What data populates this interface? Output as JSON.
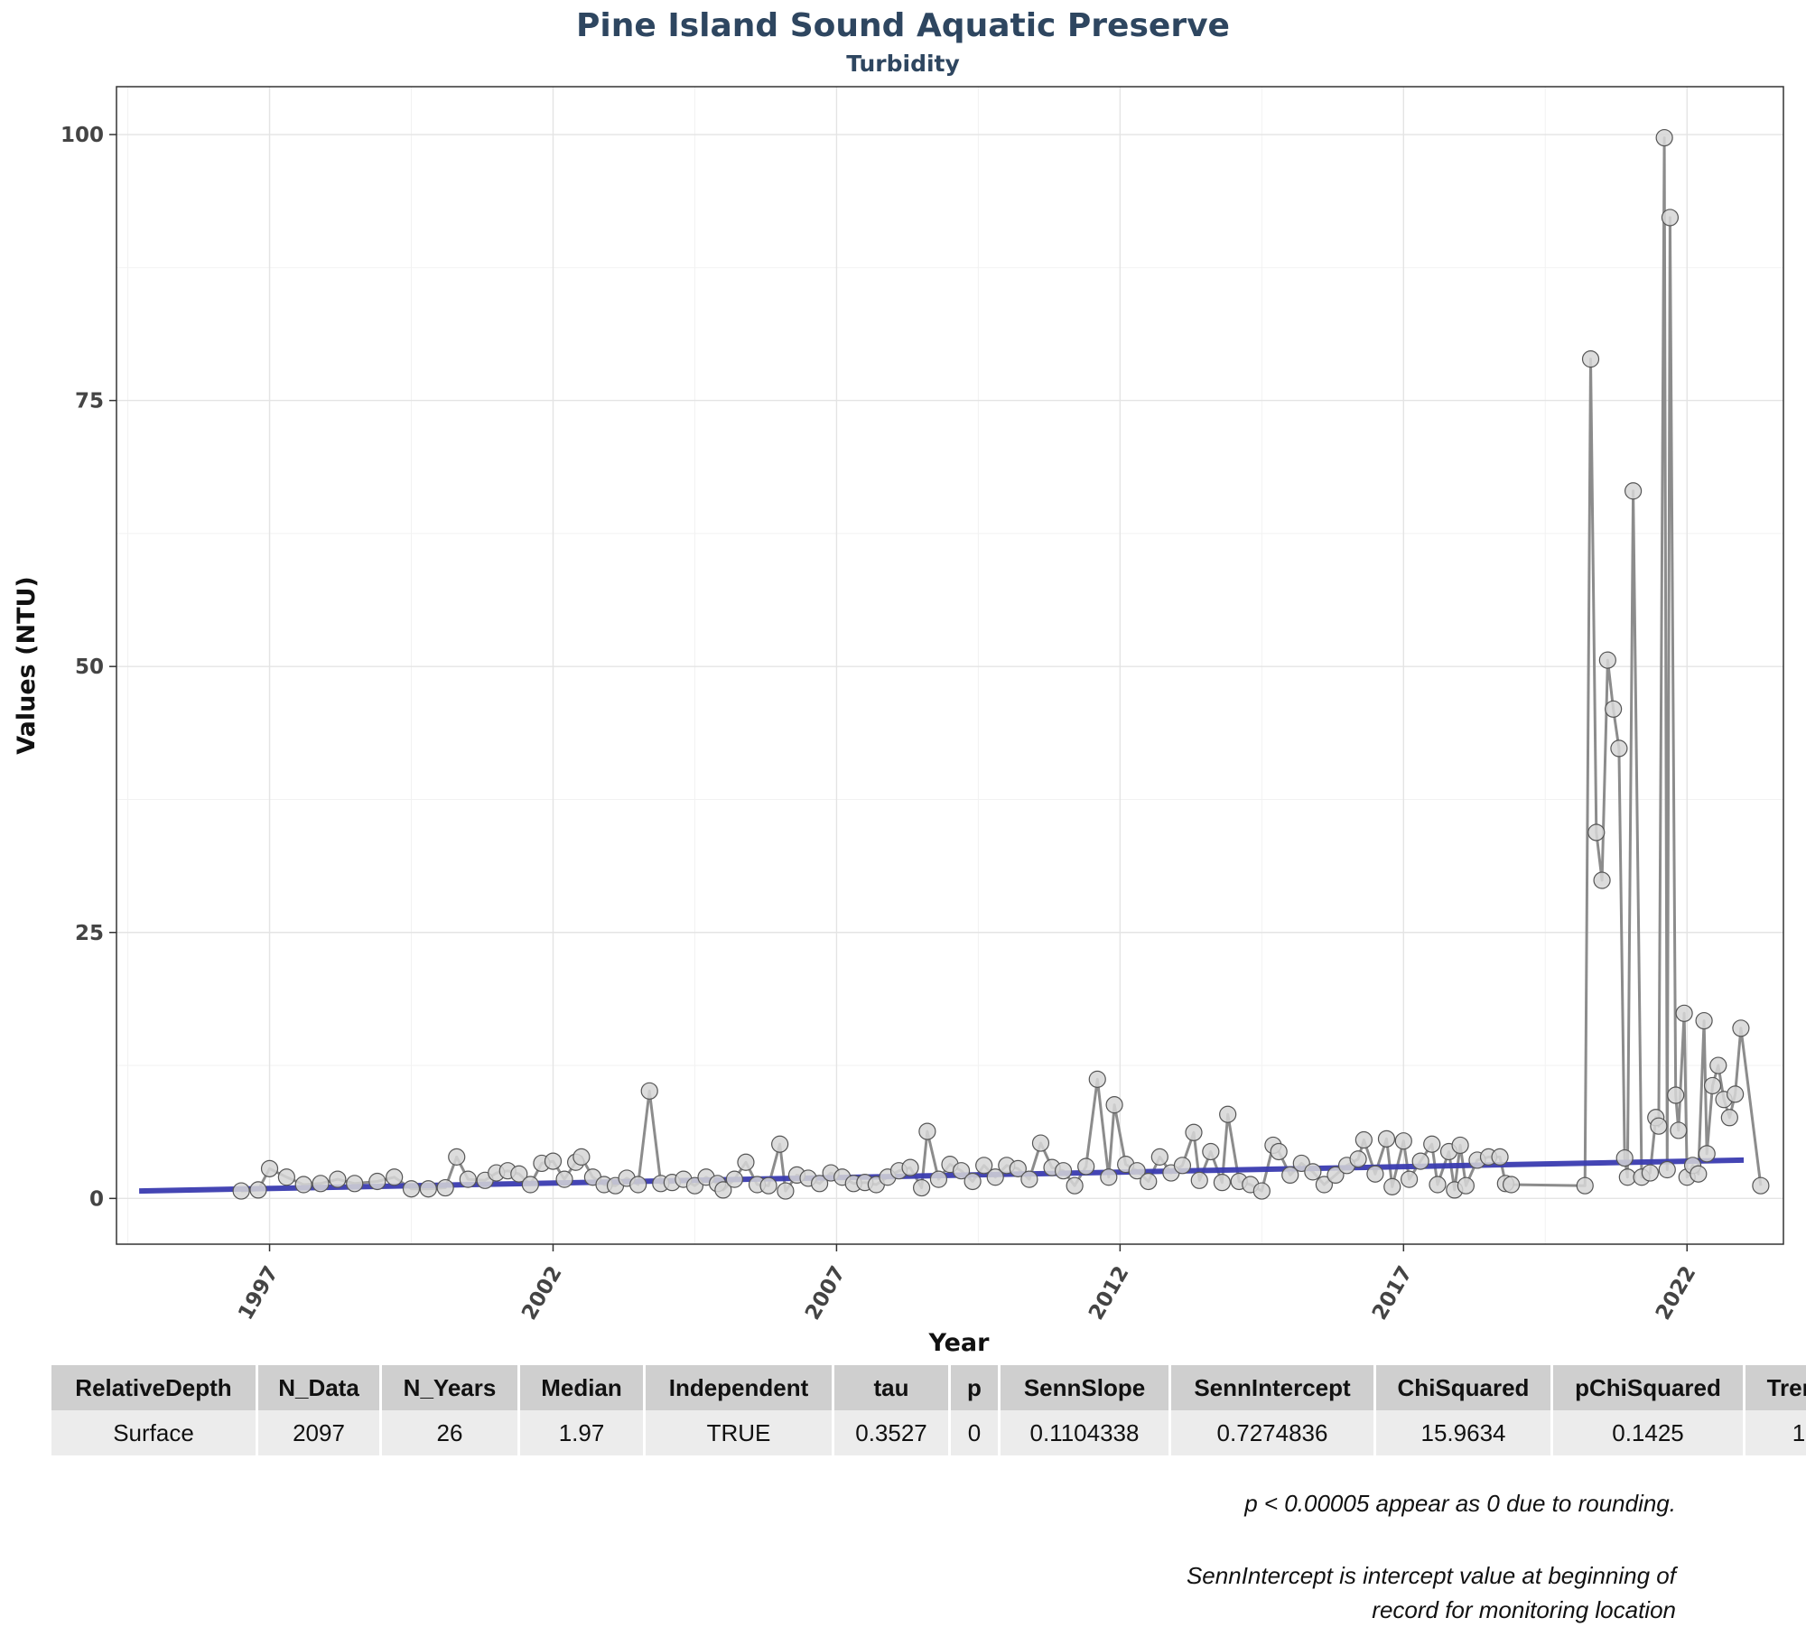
{
  "chart_data": {
    "type": "line",
    "title": "Pine Island Sound Aquatic Preserve",
    "subtitle": "Turbidity",
    "xlabel": "Year",
    "ylabel": "Values (NTU)",
    "xlim": [
      1994.3,
      2023.7
    ],
    "ylim": [
      -4.3,
      104.5
    ],
    "x_ticks": [
      1997,
      2002,
      2007,
      2012,
      2017,
      2022
    ],
    "x_tick_labels": [
      "1997",
      "2002",
      "2007",
      "2012",
      "2017",
      "2022"
    ],
    "y_ticks": [
      0,
      25,
      50,
      75,
      100
    ],
    "y_tick_labels": [
      "0",
      "25",
      "50",
      "75",
      "100"
    ],
    "grid": true,
    "series": [
      {
        "kind": "observations",
        "color": "#8c8c8c",
        "marker_fill": "#d6d6d6",
        "marker_stroke": "#555555",
        "points": [
          [
            1996.5,
            0.7
          ],
          [
            1996.8,
            0.8
          ],
          [
            1997.0,
            2.8
          ],
          [
            1997.3,
            2.0
          ],
          [
            1997.6,
            1.3
          ],
          [
            1997.9,
            1.4
          ],
          [
            1998.2,
            1.8
          ],
          [
            1998.5,
            1.4
          ],
          [
            1998.9,
            1.6
          ],
          [
            1999.2,
            2.0
          ],
          [
            1999.5,
            0.9
          ],
          [
            1999.8,
            0.9
          ],
          [
            2000.1,
            1.0
          ],
          [
            2000.3,
            3.9
          ],
          [
            2000.5,
            1.8
          ],
          [
            2000.8,
            1.7
          ],
          [
            2001.0,
            2.4
          ],
          [
            2001.2,
            2.6
          ],
          [
            2001.4,
            2.3
          ],
          [
            2001.6,
            1.3
          ],
          [
            2001.8,
            3.3
          ],
          [
            2002.0,
            3.5
          ],
          [
            2002.2,
            1.8
          ],
          [
            2002.4,
            3.4
          ],
          [
            2002.5,
            3.9
          ],
          [
            2002.7,
            2.0
          ],
          [
            2002.9,
            1.3
          ],
          [
            2003.1,
            1.2
          ],
          [
            2003.3,
            1.9
          ],
          [
            2003.5,
            1.3
          ],
          [
            2003.7,
            10.1
          ],
          [
            2003.9,
            1.4
          ],
          [
            2004.1,
            1.5
          ],
          [
            2004.3,
            1.8
          ],
          [
            2004.5,
            1.2
          ],
          [
            2004.7,
            2.0
          ],
          [
            2004.9,
            1.4
          ],
          [
            2005.0,
            0.8
          ],
          [
            2005.2,
            1.8
          ],
          [
            2005.4,
            3.4
          ],
          [
            2005.6,
            1.3
          ],
          [
            2005.8,
            1.2
          ],
          [
            2006.0,
            5.1
          ],
          [
            2006.1,
            0.7
          ],
          [
            2006.3,
            2.2
          ],
          [
            2006.5,
            1.9
          ],
          [
            2006.7,
            1.4
          ],
          [
            2006.9,
            2.4
          ],
          [
            2007.1,
            2.0
          ],
          [
            2007.3,
            1.4
          ],
          [
            2007.5,
            1.5
          ],
          [
            2007.7,
            1.3
          ],
          [
            2007.9,
            2.0
          ],
          [
            2008.1,
            2.6
          ],
          [
            2008.3,
            2.9
          ],
          [
            2008.5,
            1.0
          ],
          [
            2008.6,
            6.3
          ],
          [
            2008.8,
            1.8
          ],
          [
            2009.0,
            3.2
          ],
          [
            2009.2,
            2.6
          ],
          [
            2009.4,
            1.6
          ],
          [
            2009.6,
            3.1
          ],
          [
            2009.8,
            2.0
          ],
          [
            2010.0,
            3.1
          ],
          [
            2010.2,
            2.8
          ],
          [
            2010.4,
            1.8
          ],
          [
            2010.6,
            5.2
          ],
          [
            2010.8,
            2.9
          ],
          [
            2011.0,
            2.6
          ],
          [
            2011.2,
            1.2
          ],
          [
            2011.4,
            3.0
          ],
          [
            2011.6,
            11.2
          ],
          [
            2011.8,
            2.0
          ],
          [
            2011.9,
            8.8
          ],
          [
            2012.1,
            3.2
          ],
          [
            2012.3,
            2.6
          ],
          [
            2012.5,
            1.6
          ],
          [
            2012.7,
            3.9
          ],
          [
            2012.9,
            2.4
          ],
          [
            2013.1,
            3.1
          ],
          [
            2013.3,
            6.2
          ],
          [
            2013.4,
            1.7
          ],
          [
            2013.6,
            4.4
          ],
          [
            2013.8,
            1.5
          ],
          [
            2013.9,
            7.9
          ],
          [
            2014.1,
            1.6
          ],
          [
            2014.3,
            1.3
          ],
          [
            2014.5,
            0.7
          ],
          [
            2014.7,
            5.0
          ],
          [
            2014.8,
            4.4
          ],
          [
            2015.0,
            2.2
          ],
          [
            2015.2,
            3.3
          ],
          [
            2015.4,
            2.5
          ],
          [
            2015.6,
            1.3
          ],
          [
            2015.8,
            2.2
          ],
          [
            2016.0,
            3.1
          ],
          [
            2016.2,
            3.7
          ],
          [
            2016.3,
            5.5
          ],
          [
            2016.5,
            2.3
          ],
          [
            2016.7,
            5.6
          ],
          [
            2016.8,
            1.1
          ],
          [
            2017.0,
            5.4
          ],
          [
            2017.1,
            1.8
          ],
          [
            2017.3,
            3.5
          ],
          [
            2017.5,
            5.1
          ],
          [
            2017.6,
            1.3
          ],
          [
            2017.8,
            4.4
          ],
          [
            2017.9,
            0.8
          ],
          [
            2018.0,
            5.0
          ],
          [
            2018.1,
            1.2
          ],
          [
            2018.3,
            3.6
          ],
          [
            2018.5,
            3.9
          ],
          [
            2018.7,
            3.9
          ],
          [
            2018.8,
            1.4
          ],
          [
            2018.9,
            1.3
          ],
          [
            2020.2,
            1.2
          ],
          [
            2020.3,
            78.9
          ],
          [
            2020.4,
            34.4
          ],
          [
            2020.5,
            29.9
          ],
          [
            2020.6,
            50.6
          ],
          [
            2020.7,
            46.0
          ],
          [
            2020.8,
            42.3
          ],
          [
            2020.9,
            3.8
          ],
          [
            2020.95,
            2.0
          ],
          [
            2021.05,
            66.5
          ],
          [
            2021.2,
            2.0
          ],
          [
            2021.35,
            2.4
          ],
          [
            2021.45,
            7.6
          ],
          [
            2021.5,
            6.8
          ],
          [
            2021.6,
            99.7
          ],
          [
            2021.65,
            2.7
          ],
          [
            2021.7,
            92.2
          ],
          [
            2021.8,
            9.7
          ],
          [
            2021.85,
            6.4
          ],
          [
            2021.95,
            17.4
          ],
          [
            2022.0,
            2.0
          ],
          [
            2022.1,
            3.1
          ],
          [
            2022.2,
            2.3
          ],
          [
            2022.3,
            16.7
          ],
          [
            2022.35,
            4.2
          ],
          [
            2022.45,
            10.6
          ],
          [
            2022.55,
            12.5
          ],
          [
            2022.65,
            9.3
          ],
          [
            2022.75,
            7.6
          ],
          [
            2022.85,
            9.8
          ],
          [
            2022.95,
            16.0
          ],
          [
            2023.3,
            1.2
          ]
        ]
      },
      {
        "kind": "trend",
        "color": "#3a3cb0",
        "points": [
          [
            1994.7,
            0.7
          ],
          [
            2023.0,
            3.6
          ]
        ]
      }
    ]
  },
  "table": {
    "headers": [
      "RelativeDepth",
      "N_Data",
      "N_Years",
      "Median",
      "Independent",
      "tau",
      "p",
      "SennSlope",
      "SennIntercept",
      "ChiSquared",
      "pChiSquared",
      "Trend"
    ],
    "rows": [
      [
        "Surface",
        "2097",
        "26",
        "1.97",
        "TRUE",
        "0.3527",
        "0",
        "0.1104338",
        "0.7274836",
        "15.9634",
        "0.1425",
        "1"
      ]
    ]
  },
  "notes": {
    "rounding": "p < 0.00005 appear as 0 due to rounding.",
    "intercept_line1": "SennIntercept is intercept value at beginning of",
    "intercept_line2": "record for monitoring location"
  }
}
